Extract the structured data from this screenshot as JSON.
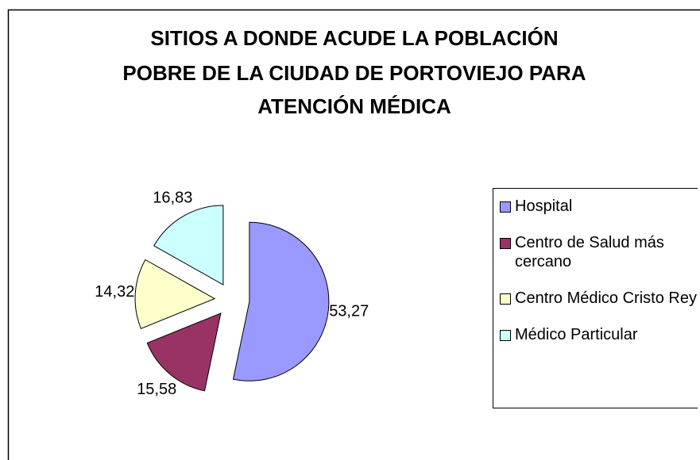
{
  "chart_data": {
    "type": "pie",
    "title": [
      "SITIOS A DONDE ACUDE LA POBLACIÓN",
      "POBRE DE LA CIUDAD DE PORTOVIEJO PARA",
      "ATENCIÓN MÉDICA"
    ],
    "categories": [
      "Hospital",
      "Centro de Salud más cercano",
      "Centro Médico Cristo Rey",
      "Médico Particular"
    ],
    "values": [
      53.27,
      15.58,
      14.32,
      16.83
    ],
    "value_labels": [
      "53,27",
      "15,58",
      "14,32",
      "16,83"
    ],
    "colors": [
      "#9999ff",
      "#993366",
      "#ffffcc",
      "#ccffff"
    ],
    "legend": "right"
  }
}
